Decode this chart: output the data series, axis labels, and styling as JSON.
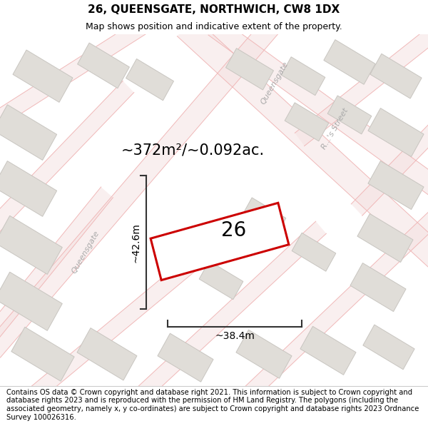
{
  "title": "26, QUEENSGATE, NORTHWICH, CW8 1DX",
  "subtitle": "Map shows position and indicative extent of the property.",
  "area_text": "~372m²/~0.092ac.",
  "dim_h": "~42.6m",
  "dim_w": "~38.4m",
  "number": "26",
  "footer": "Contains OS data © Crown copyright and database right 2021. This information is subject to Crown copyright and database rights 2023 and is reproduced with the permission of HM Land Registry. The polygons (including the associated geometry, namely x, y co-ordinates) are subject to Crown copyright and database rights 2023 Ordnance Survey 100026316.",
  "bg_color": "#f7f5f2",
  "footer_bg": "#ffffff",
  "title_bg": "#ffffff",
  "road_line_color": "#f0b8b8",
  "road_fill_color": "#f5e8e8",
  "block_color": "#e0ddd8",
  "block_edge": "#c8c5c0",
  "prop_fill": "#ffffff",
  "prop_edge": "#cc0000",
  "arrow_color": "#333333",
  "text_color": "#000000",
  "label_color": "#aaaaaa",
  "title_fontsize": 11,
  "subtitle_fontsize": 9,
  "footer_fontsize": 7.2,
  "area_fontsize": 15,
  "dim_fontsize": 10,
  "number_fontsize": 20,
  "label_fontsize": 8
}
